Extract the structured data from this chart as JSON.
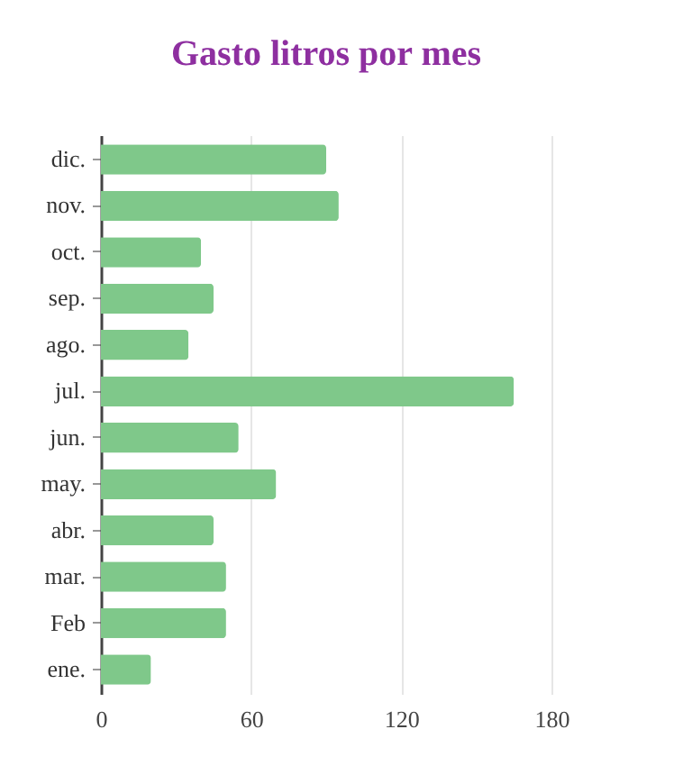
{
  "chart_data": {
    "type": "bar",
    "orientation": "horizontal",
    "title": "Gasto litros por mes",
    "categories": [
      "dic.",
      "nov.",
      "oct.",
      "sep.",
      "ago.",
      "jul.",
      "jun.",
      "may.",
      "abr.",
      "mar.",
      "Feb",
      "ene."
    ],
    "values": [
      90,
      95,
      40,
      45,
      35,
      165,
      55,
      70,
      45,
      50,
      50,
      20
    ],
    "color": "#7fc88a",
    "xlim": [
      0,
      180
    ],
    "xticks": [
      0,
      60,
      120,
      180
    ],
    "grid": "x"
  }
}
